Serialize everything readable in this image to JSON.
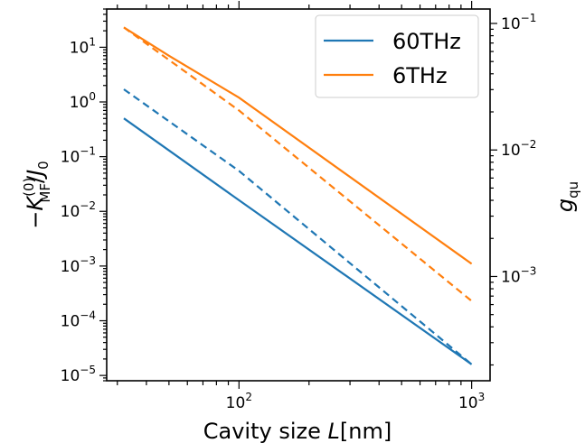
{
  "chart_data": {
    "type": "line",
    "title": "",
    "xlabel": {
      "prefix": "Cavity size ",
      "symbol": "L",
      "suffix": "[nm]"
    },
    "ylabel_left": {
      "minus": "−",
      "symbol": "K",
      "sup": "(0)",
      "sub": "MF",
      "slash": "/",
      "symbol2": "J",
      "sub2": "0"
    },
    "ylabel_right": {
      "symbol": "g",
      "sub": "qu"
    },
    "x_scale": "log",
    "x_range": [
      27,
      1200
    ],
    "x_ticks": [
      {
        "value": 100,
        "base": "10",
        "exp": "2"
      },
      {
        "value": 1000,
        "base": "10",
        "exp": "3"
      }
    ],
    "y_left_scale": "log",
    "y_left_range": [
      8e-06,
      50
    ],
    "y_left_ticks": [
      {
        "value": 10,
        "base": "10",
        "exp": "1"
      },
      {
        "value": 1,
        "base": "10",
        "exp": "0"
      },
      {
        "value": 0.1,
        "base": "10",
        "exp": "−1"
      },
      {
        "value": 0.01,
        "base": "10",
        "exp": "−2"
      },
      {
        "value": 0.001,
        "base": "10",
        "exp": "−3"
      },
      {
        "value": 0.0001,
        "base": "10",
        "exp": "−4"
      },
      {
        "value": 1e-05,
        "base": "10",
        "exp": "−5"
      }
    ],
    "y_right_scale": "log",
    "y_right_range": [
      0.00015,
      0.13
    ],
    "y_right_ticks": [
      {
        "value": 0.1,
        "base": "10",
        "exp": "−1"
      },
      {
        "value": 0.01,
        "base": "10",
        "exp": "−2"
      },
      {
        "value": 0.001,
        "base": "10",
        "exp": "−3"
      }
    ],
    "legend": {
      "placement": "top-right",
      "entries": [
        {
          "label": "60THz",
          "color": "#1f77b4"
        },
        {
          "label": "6THz",
          "color": "#ff7f0e"
        }
      ]
    },
    "series": [
      {
        "name": "60THz",
        "color": "#1f77b4",
        "style": "solid",
        "axis": "left",
        "x": [
          32,
          100,
          1000
        ],
        "y": [
          0.5,
          0.016,
          1.6e-05
        ]
      },
      {
        "name": "60THz",
        "color": "#1f77b4",
        "style": "dashed",
        "axis": "left",
        "x": [
          32,
          100,
          1000
        ],
        "y": [
          1.7,
          0.055,
          1.6e-05
        ]
      },
      {
        "name": "6THz",
        "color": "#ff7f0e",
        "style": "solid",
        "axis": "left",
        "x": [
          32,
          50,
          100,
          1000
        ],
        "y": [
          23,
          7,
          1.2,
          0.0011
        ]
      },
      {
        "name": "6THz",
        "color": "#ff7f0e",
        "style": "dashed",
        "axis": "left",
        "x": [
          32,
          100,
          1000
        ],
        "y": [
          23,
          0.7,
          0.00023
        ]
      }
    ],
    "grid": false
  }
}
